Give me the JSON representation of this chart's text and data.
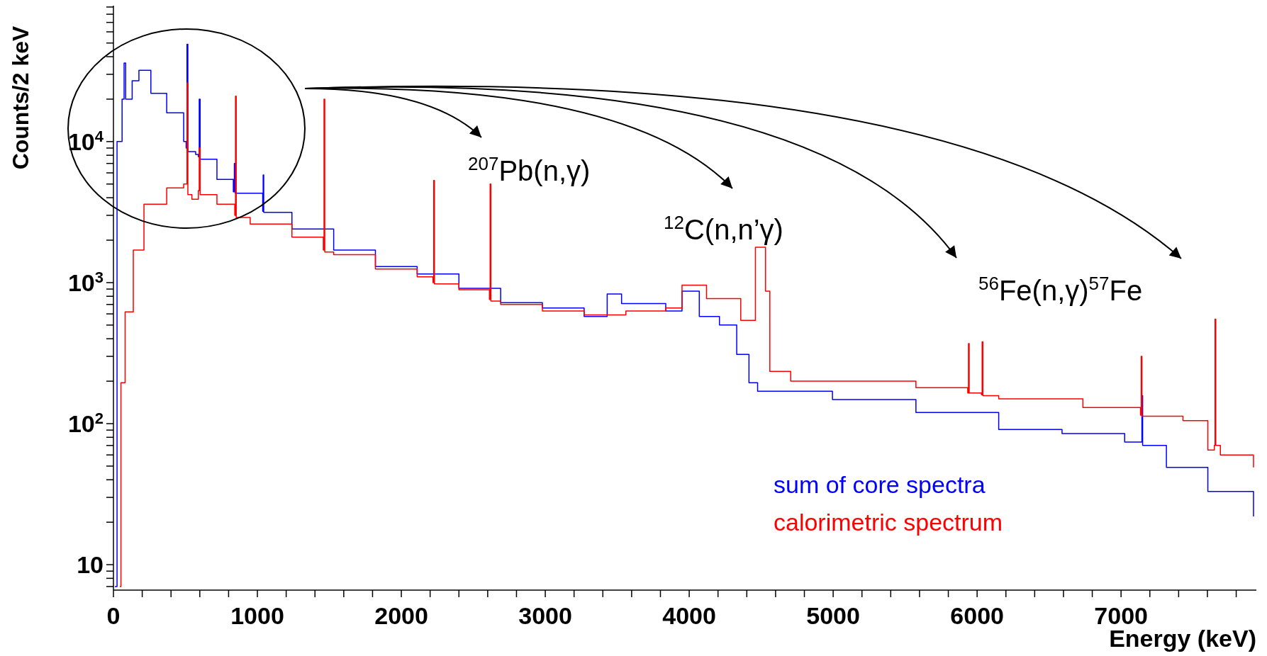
{
  "chart_data": {
    "type": "step",
    "xlabel": "Energy (keV)",
    "ylabel": "Counts/2 keV",
    "xlim": [
      0,
      7940
    ],
    "ylim": [
      6.6,
      92000
    ],
    "log": "y",
    "grid": false,
    "legend": "bottom right",
    "line_style": "solid",
    "marker": "none",
    "xticks": [
      0,
      {
        "value": 200,
        "label": null
      },
      {
        "value": 400,
        "label": null
      },
      {
        "value": 600,
        "label": null
      },
      {
        "value": 800,
        "label": null
      },
      1000,
      {
        "value": 1200,
        "label": null
      },
      {
        "value": 1400,
        "label": null
      },
      {
        "value": 1600,
        "label": null
      },
      {
        "value": 1800,
        "label": null
      },
      2000,
      {
        "value": 2200,
        "label": null
      },
      {
        "value": 2400,
        "label": null
      },
      {
        "value": 2600,
        "label": null
      },
      {
        "value": 2800,
        "label": null
      },
      3000,
      {
        "value": 3200,
        "label": null
      },
      {
        "value": 3400,
        "label": null
      },
      {
        "value": 3600,
        "label": null
      },
      {
        "value": 3800,
        "label": null
      },
      4000,
      {
        "value": 4200,
        "label": null
      },
      {
        "value": 4400,
        "label": null
      },
      {
        "value": 4600,
        "label": null
      },
      {
        "value": 4800,
        "label": null
      },
      5000,
      {
        "value": 5200,
        "label": null
      },
      {
        "value": 5400,
        "label": null
      },
      {
        "value": 5600,
        "label": null
      },
      {
        "value": 5800,
        "label": null
      },
      6000,
      {
        "value": 6200,
        "label": null
      },
      {
        "value": 6400,
        "label": null
      },
      {
        "value": 6600,
        "label": null
      },
      {
        "value": 6800,
        "label": null
      },
      7000,
      {
        "value": 7200,
        "label": null
      },
      {
        "value": 7400,
        "label": null
      },
      {
        "value": 7600,
        "label": null
      },
      {
        "value": 7800,
        "label": null
      }
    ],
    "yticks": [
      {
        "value": 7,
        "label": null
      },
      {
        "value": 8,
        "label": null
      },
      {
        "value": 9,
        "label": null
      },
      10,
      {
        "value": 20,
        "label": null
      },
      {
        "value": 30,
        "label": null
      },
      {
        "value": 40,
        "label": null
      },
      {
        "value": 50,
        "label": null
      },
      {
        "value": 60,
        "label": null
      },
      {
        "value": 70,
        "label": null
      },
      {
        "value": 80,
        "label": null
      },
      {
        "value": 90,
        "label": null
      },
      {
        "value": 100,
        "label": "10$^{2}$"
      },
      {
        "value": 200,
        "label": null
      },
      {
        "value": 300,
        "label": null
      },
      {
        "value": 400,
        "label": null
      },
      {
        "value": 500,
        "label": null
      },
      {
        "value": 600,
        "label": null
      },
      {
        "value": 700,
        "label": null
      },
      {
        "value": 800,
        "label": null
      },
      {
        "value": 900,
        "label": null
      },
      {
        "value": 1000,
        "label": "10$^{3}$"
      },
      {
        "value": 2000,
        "label": null
      },
      {
        "value": 3000,
        "label": null
      },
      {
        "value": 4000,
        "label": null
      },
      {
        "value": 5000,
        "label": null
      },
      {
        "value": 6000,
        "label": null
      },
      {
        "value": 7000,
        "label": null
      },
      {
        "value": 8000,
        "label": null
      },
      {
        "value": 9000,
        "label": null
      },
      {
        "value": 10000,
        "label": "10$^{4}$"
      },
      {
        "value": 20000,
        "label": null
      },
      {
        "value": 30000,
        "label": null
      },
      {
        "value": 40000,
        "label": null
      },
      {
        "value": 50000,
        "label": null
      },
      {
        "value": 60000,
        "label": null
      },
      {
        "value": 70000,
        "label": null
      },
      {
        "value": 80000,
        "label": null
      },
      {
        "value": 90000,
        "label": null
      }
    ],
    "annotations": [
      "$^{207}$Pb(n,γ)",
      "$^{12}$C(n,n’γ)",
      "$^{56}$Fe(n,γ)$^{57}$Fe"
    ],
    "series": [
      {
        "name": "sum of core spectra",
        "color": "#0000ff",
        "x": [
          10,
          25,
          60,
          74,
          85,
          130,
          177,
          260,
          370,
          488,
          505,
          511,
          517,
          571,
          590,
          596,
          602,
          719,
          833,
          840,
          846,
          1037,
          1040,
          1044,
          1240,
          1530,
          1820,
          2110,
          2400,
          2690,
          2980,
          3270,
          3430,
          3530,
          3837,
          3950,
          4070,
          4210,
          4330,
          4415,
          4475,
          4995,
          5575,
          6150,
          6590,
          6880,
          7025,
          7140,
          7145,
          7150,
          7315,
          7603,
          7920
        ],
        "values": [
          7,
          10000,
          20000,
          36000,
          20000,
          27000,
          32000,
          22000,
          16000,
          10000,
          9000,
          49000,
          8500,
          8100,
          7800,
          20000,
          7500,
          5400,
          4400,
          7000,
          4300,
          3200,
          5800,
          3150,
          2400,
          1700,
          1300,
          1150,
          910,
          720,
          660,
          575,
          830,
          710,
          630,
          870,
          575,
          500,
          310,
          195,
          170,
          148,
          120,
          91,
          85,
          85,
          74,
          74,
          158,
          70,
          49,
          33,
          22
        ]
      },
      {
        "name": "calorimetric spectrum",
        "color": "#ff0000",
        "x": [
          44,
          52,
          81,
          138,
          212,
          370,
          488,
          505,
          511,
          517,
          545,
          590,
          596,
          602,
          719,
          843,
          848,
          853,
          950,
          1240,
          1458,
          1463,
          1468,
          1530,
          1820,
          2110,
          2220,
          2225,
          2230,
          2400,
          2612,
          2617,
          2622,
          2690,
          2980,
          3270,
          3560,
          3837,
          3950,
          4120,
          4235,
          4358,
          4460,
          4530,
          4560,
          4705,
          5575,
          5935,
          5940,
          5945,
          6030,
          6035,
          6040,
          6150,
          6735,
          7135,
          7140,
          7145,
          7430,
          7603,
          7648,
          7653,
          7658,
          7690,
          7920
        ],
        "values": [
          7,
          195,
          620,
          1700,
          3600,
          4700,
          5000,
          5000,
          26000,
          4200,
          3900,
          4500,
          9000,
          4200,
          3600,
          3000,
          21000,
          2900,
          2600,
          2100,
          1700,
          20000,
          1650,
          1580,
          1250,
          1100,
          1000,
          5300,
          980,
          890,
          760,
          5000,
          740,
          700,
          630,
          590,
          630,
          660,
          960,
          770,
          770,
          540,
          1780,
          870,
          235,
          200,
          180,
          165,
          370,
          165,
          160,
          380,
          158,
          150,
          130,
          115,
          300,
          113,
          105,
          65,
          70,
          550,
          70,
          60,
          49
        ]
      }
    ]
  }
}
